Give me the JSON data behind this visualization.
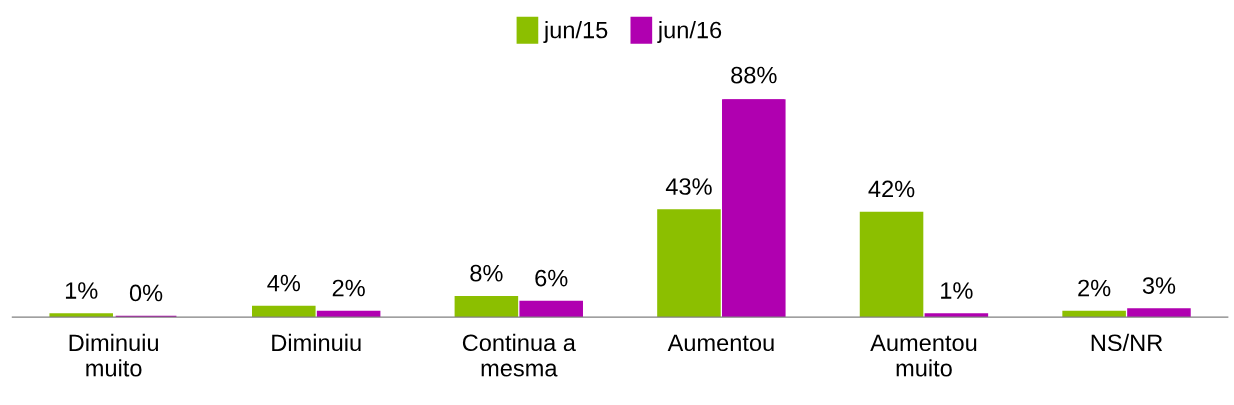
{
  "chart_data": {
    "type": "bar",
    "categories": [
      "Diminuiu\nmuito",
      "Diminuiu",
      "Continua a\nmesma",
      "Aumentou",
      "Aumentou\nmuito",
      "NS/NR"
    ],
    "series": [
      {
        "name": "jun/15",
        "color": "#8cbf00",
        "values": [
          1,
          4,
          8,
          43,
          42,
          2
        ],
        "value_labels": [
          "1%",
          "4%",
          "8%",
          "43%",
          "42%",
          "2%"
        ]
      },
      {
        "name": "jun/16",
        "color": "#b000b0",
        "values": [
          0,
          2,
          6,
          88,
          1,
          3
        ],
        "value_labels": [
          "0%",
          "2%",
          "6%",
          "88%",
          "1%",
          "3%"
        ]
      }
    ],
    "legend": "top"
  }
}
